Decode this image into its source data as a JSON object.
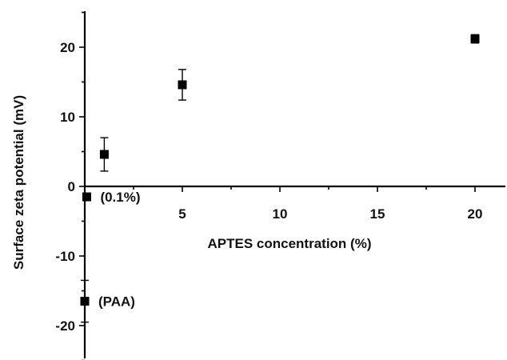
{
  "chart_data": {
    "type": "scatter",
    "title": "",
    "xlabel": "APTES concentration (%)",
    "ylabel": "Surface zeta potential (mV)",
    "xlim": [
      0,
      21.5
    ],
    "ylim": [
      -25,
      25
    ],
    "x_ticks": [
      5,
      10,
      15,
      20
    ],
    "x_tick_labels": [
      "5",
      "10",
      "15",
      "20"
    ],
    "y_ticks": [
      -20,
      -10,
      0,
      10,
      20
    ],
    "y_tick_labels": [
      "-20",
      "-10",
      "0",
      "10",
      "20"
    ],
    "grid": false,
    "series": [
      {
        "marker": "square",
        "color": "#000000",
        "points": [
          {
            "x": 0,
            "y": -16.5,
            "err": 3,
            "label": "(PAA)"
          },
          {
            "x": 0.1,
            "y": -1.5,
            "err": 0,
            "label": "(0.1%)"
          },
          {
            "x": 1,
            "y": 4.6,
            "err": 2.4,
            "label": ""
          },
          {
            "x": 5,
            "y": 14.6,
            "err": 2.2,
            "label": ""
          },
          {
            "x": 20,
            "y": 21.2,
            "err": 0.6,
            "label": ""
          }
        ]
      }
    ]
  }
}
